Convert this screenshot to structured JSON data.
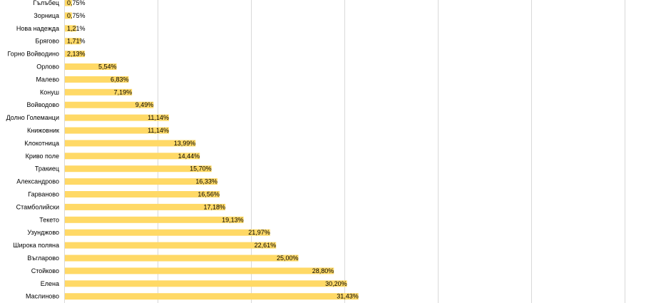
{
  "chart_data": {
    "type": "bar",
    "orientation": "horizontal",
    "categories": [
      "Гълъбец",
      "Зорница",
      "Нова надежда",
      "Брягово",
      "Горно Войводино",
      "Орлово",
      "Малево",
      "Конуш",
      "Войводово",
      "Долно Големанци",
      "Книжовник",
      "Клокотница",
      "Криво поле",
      "Тракиец",
      "Александрово",
      "Гарваново",
      "Стамболийски",
      "Текето",
      "Узунджово",
      "Широка поляна",
      "Въгларово",
      "Стойково",
      "Елена",
      "Маслиново"
    ],
    "values": [
      0.75,
      0.75,
      1.21,
      1.71,
      2.13,
      5.54,
      6.83,
      7.19,
      9.49,
      11.14,
      11.14,
      13.99,
      14.44,
      15.7,
      16.33,
      16.56,
      17.18,
      19.13,
      21.97,
      22.61,
      25.0,
      28.8,
      30.2,
      31.43
    ],
    "value_labels": [
      "0,75%",
      "0,75%",
      "1,21%",
      "1,71%",
      "2,13%",
      "5,54%",
      "6,83%",
      "7,19%",
      "9,49%",
      "11,14%",
      "11,14%",
      "13,99%",
      "14,44%",
      "15,70%",
      "16,33%",
      "16,56%",
      "17,18%",
      "19,13%",
      "21,97%",
      "22,61%",
      "25,00%",
      "28,80%",
      "30,20%",
      "31,43%"
    ],
    "xlim": [
      0,
      60
    ],
    "gridlines_at": [
      10,
      20,
      30,
      40,
      50,
      60
    ],
    "grid": true,
    "bar_color": "#ffd966",
    "title": "",
    "xlabel": "",
    "ylabel": ""
  }
}
